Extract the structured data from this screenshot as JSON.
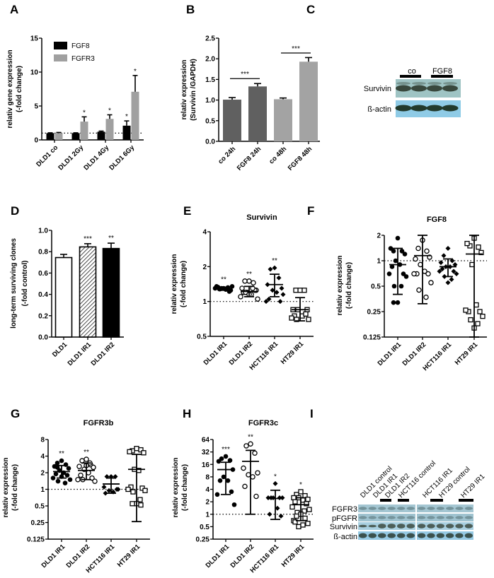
{
  "panel_letters": [
    "A",
    "B",
    "C",
    "D",
    "E",
    "F",
    "G",
    "H",
    "I"
  ],
  "chart_data": [
    {
      "id": "A",
      "type": "bar",
      "title": "",
      "ylabel": [
        "relativ gene expression",
        "(-fold change)"
      ],
      "yscale": "linear",
      "ylim": [
        0,
        15
      ],
      "yticks": [
        "0",
        "5",
        "10",
        "15"
      ],
      "reference_line": 1,
      "legend_position": "top-left",
      "categories": [
        "DLD1 co",
        "DLD1 2Gy",
        "DLD1 4Gy",
        "DLD1 6Gy"
      ],
      "series": [
        {
          "name": "FGF8",
          "color": "#000000",
          "values": [
            1.0,
            1.0,
            1.2,
            2.1
          ],
          "errors": [
            0.05,
            0.05,
            0.1,
            0.7
          ],
          "significance": [
            "",
            "",
            "",
            "*"
          ]
        },
        {
          "name": "FGFR3",
          "color": "#a0a0a0",
          "values": [
            1.0,
            2.7,
            3.1,
            7.1
          ],
          "errors": [
            0.1,
            0.7,
            0.6,
            2.4
          ],
          "significance": [
            "",
            "*",
            "*",
            "*"
          ]
        }
      ]
    },
    {
      "id": "B",
      "type": "bar",
      "title": "",
      "ylabel": [
        "relativ expression",
        "(Survivin /GAPDH)"
      ],
      "yscale": "linear",
      "ylim": [
        0,
        2.5
      ],
      "yticks": [
        "0.0",
        "0.5",
        "1.0",
        "1.5",
        "2.0",
        "2.5"
      ],
      "categories": [
        "co 24h",
        "FGF8 24h",
        "co 48h",
        "FGF8 48h"
      ],
      "values": [
        1.01,
        1.33,
        1.02,
        1.93
      ],
      "errors": [
        0.05,
        0.07,
        0.03,
        0.1
      ],
      "colors": [
        "#606060",
        "#606060",
        "#a3a3a3",
        "#a3a3a3"
      ],
      "brackets": [
        {
          "from": 0,
          "to": 1,
          "y": 1.52,
          "label": "***"
        },
        {
          "from": 2,
          "to": 3,
          "y": 2.14,
          "label": "***"
        }
      ]
    },
    {
      "id": "D",
      "type": "bar",
      "title": "",
      "ylabel": [
        "long-term surviving clones",
        "(-fold control)"
      ],
      "yscale": "linear",
      "ylim": [
        0,
        1.0
      ],
      "yticks": [
        "0.0",
        "0.2",
        "0.4",
        "0.6",
        "0.8",
        "1.0"
      ],
      "categories": [
        "DLD1",
        "DLD1 IR1",
        "DLD1 IR2"
      ],
      "values": [
        0.745,
        0.845,
        0.83
      ],
      "errors": [
        0.03,
        0.03,
        0.05
      ],
      "fills": [
        "white",
        "hatched",
        "black"
      ],
      "significance": [
        "",
        "***",
        "**"
      ]
    },
    {
      "id": "E",
      "type": "scatter",
      "title": "Survivin",
      "ylabel": [
        "relativ expression",
        "(-fold change)"
      ],
      "yscale": "log2",
      "ylim": [
        0.5,
        4
      ],
      "yticks": [
        "0.5",
        "1",
        "2",
        "4"
      ],
      "reference_line": 1,
      "groups": [
        {
          "name": "DLD1 IR1",
          "marker": "filled-circle",
          "points": [
            1.3,
            1.28,
            1.32,
            1.35,
            1.25,
            1.3,
            1.27,
            1.33,
            1.22,
            1.3,
            1.35,
            1.28
          ],
          "mean": 1.29,
          "sd": [
            1.25,
            1.33
          ],
          "significance": "**"
        },
        {
          "name": "DLD1 IR2",
          "marker": "open-circle",
          "points": [
            1.5,
            1.5,
            1.45,
            1.3,
            1.25,
            1.2,
            1.15,
            1.2,
            1.25,
            1.1,
            1.05,
            1.2,
            1.3,
            1.15
          ],
          "mean": 1.22,
          "sd": [
            1.1,
            1.35
          ],
          "significance": "**"
        },
        {
          "name": "HCT116 IR1",
          "marker": "filled-diamond",
          "points": [
            1.95,
            1.9,
            1.6,
            1.4,
            1.3,
            1.25,
            1.2,
            1.05,
            1.0,
            1.0,
            1.15
          ],
          "mean": 1.4,
          "sd": [
            1.1,
            1.72
          ],
          "significance": "**"
        },
        {
          "name": "HT29 IR1",
          "marker": "open-square",
          "points": [
            1.25,
            1.25,
            1.25,
            0.85,
            0.85,
            0.85,
            0.75,
            0.75,
            0.78,
            0.72,
            0.7,
            0.7
          ],
          "mean": 0.85,
          "sd": [
            0.68,
            1.08
          ],
          "significance": ""
        }
      ]
    },
    {
      "id": "F",
      "type": "scatter",
      "title": "FGF8",
      "ylabel": [
        "relativ expression",
        "(-fold change)"
      ],
      "yscale": "log2",
      "ylim": [
        0.125,
        2
      ],
      "yticks": [
        "0.125",
        "0.25",
        "0.5",
        "1",
        "2"
      ],
      "reference_line": 1,
      "groups": [
        {
          "name": "DLD1 IR1",
          "marker": "filled-circle",
          "points": [
            1.85,
            1.3,
            1.3,
            1.4,
            1.2,
            1.0,
            0.9,
            0.85,
            0.7,
            0.7,
            0.65,
            0.5,
            0.5,
            0.32,
            0.32
          ],
          "mean": 0.9,
          "sd": [
            0.4,
            1.4
          ],
          "significance": ""
        },
        {
          "name": "DLD1 IR2",
          "marker": "open-circle",
          "points": [
            1.75,
            1.4,
            1.3,
            1.05,
            1.1,
            0.9,
            0.75,
            0.7,
            0.7,
            0.7,
            0.55,
            0.45,
            0.37
          ],
          "mean": 1.15,
          "sd": [
            0.31,
            2.0
          ],
          "significance": ""
        },
        {
          "name": "HCT116 IR1",
          "marker": "filled-diamond",
          "points": [
            1.4,
            1.15,
            1.0,
            0.95,
            0.9,
            0.85,
            0.85,
            0.8,
            0.75,
            0.75,
            0.7,
            0.65,
            0.6,
            0.55
          ],
          "mean": 0.85,
          "sd": [
            0.65,
            1.05
          ],
          "significance": ""
        },
        {
          "name": "HT29 IR1",
          "marker": "open-square",
          "points": [
            1.85,
            1.5,
            1.45,
            1.6,
            1.25,
            0.9,
            0.3,
            0.25,
            0.25,
            0.26,
            0.22,
            0.2,
            0.18,
            0.16
          ],
          "mean": 1.2,
          "sd": [
            0.125,
            2.0
          ],
          "significance": ""
        }
      ]
    },
    {
      "id": "G",
      "type": "scatter",
      "title": "FGFR3b",
      "ylabel": [
        "relativ expression",
        "(-fold change)"
      ],
      "yscale": "log2",
      "ylim": [
        0.125,
        8
      ],
      "yticks": [
        "0.125",
        "0.25",
        "0.5",
        "1",
        "2",
        "4",
        "8"
      ],
      "reference_line": 1,
      "groups": [
        {
          "name": "DLD1 IR1",
          "marker": "filled-circle",
          "points": [
            3.3,
            3.0,
            2.8,
            2.6,
            2.4,
            2.2,
            2.0,
            1.9,
            1.8,
            1.6,
            1.5,
            1.4,
            1.3,
            1.7,
            2.5
          ],
          "mean": 2.1,
          "sd": [
            1.6,
            2.7
          ],
          "significance": "**"
        },
        {
          "name": "DLD1 IR2",
          "marker": "open-circle",
          "points": [
            3.5,
            3.3,
            2.8,
            2.6,
            2.5,
            2.3,
            2.0,
            1.8,
            1.6,
            1.5,
            1.4,
            1.5,
            3.0,
            2.7
          ],
          "mean": 2.2,
          "sd": [
            1.5,
            3.0
          ],
          "significance": "**"
        },
        {
          "name": "HCT116 IR1",
          "marker": "filled-diamond",
          "points": [
            1.7,
            1.7,
            1.7,
            1.1,
            1.0,
            0.95,
            0.9,
            0.85,
            1.0
          ],
          "mean": 1.25,
          "sd": [
            0.85,
            1.6
          ],
          "significance": ""
        },
        {
          "name": "HT29 IR1",
          "marker": "open-square",
          "points": [
            5.5,
            5.0,
            5.2,
            4.8,
            4.6,
            2.3,
            2.2,
            1.1,
            1.05,
            1.0,
            0.95,
            0.9,
            0.65,
            0.55,
            0.55,
            0.52
          ],
          "mean": 2.3,
          "sd": [
            0.26,
            4.3
          ],
          "significance": ""
        }
      ]
    },
    {
      "id": "H",
      "type": "scatter",
      "title": "FGFR3c",
      "ylabel": [
        "relativ expression",
        "(-fold change)"
      ],
      "yscale": "log2",
      "ylim": [
        0.25,
        64
      ],
      "yticks": [
        "0.25",
        "0.5",
        "1",
        "2",
        "4",
        "8",
        "16",
        "32",
        "64"
      ],
      "reference_line": 1,
      "groups": [
        {
          "name": "DLD1 IR1",
          "marker": "filled-circle",
          "points": [
            25,
            22,
            20,
            19,
            12,
            8,
            6.5,
            6.5,
            3.5,
            3,
            1.7
          ],
          "mean": 12,
          "sd": [
            3,
            18
          ],
          "significance": "***"
        },
        {
          "name": "DLD1 IR2",
          "marker": "open-circle",
          "points": [
            50,
            45,
            30,
            13,
            10,
            9,
            8,
            4.7,
            2.7
          ],
          "mean": 19,
          "sd": [
            1,
            35
          ],
          "significance": "**"
        },
        {
          "name": "HCT116 IR1",
          "marker": "filled-diamond",
          "points": [
            5.5,
            2.5,
            2.5,
            2.5,
            2.5,
            2.5,
            1.4,
            1.0,
            0.9
          ],
          "mean": 2.4,
          "sd": [
            0.75,
            3.8
          ],
          "significance": "*"
        },
        {
          "name": "HT29 IR1",
          "marker": "open-square",
          "points": [
            3.5,
            3,
            2.8,
            2.5,
            2.3,
            2.5,
            2.2,
            2,
            1.8,
            1.5,
            1.3,
            1.1,
            1.2,
            1.0,
            0.9,
            0.8,
            0.7,
            0.6,
            0.5,
            0.55,
            0.65
          ],
          "mean": 1.7,
          "sd": [
            0.7,
            2.5
          ],
          "significance": "*"
        }
      ]
    }
  ],
  "blots": {
    "C": {
      "col_labels": [
        "co",
        "FGF8"
      ],
      "row_labels": [
        "Survivin",
        "ß-actin"
      ]
    },
    "I": {
      "col_labels": [
        "DLD1 control",
        "DLD1 IR1",
        "DLD1 IR2",
        "HCT116 control",
        "HCT116 IR1",
        "HT29 control",
        "HT29 IR1"
      ],
      "row_labels": [
        "FGFR3",
        "pFGFR",
        "Survivin",
        "ß-actin"
      ]
    }
  }
}
